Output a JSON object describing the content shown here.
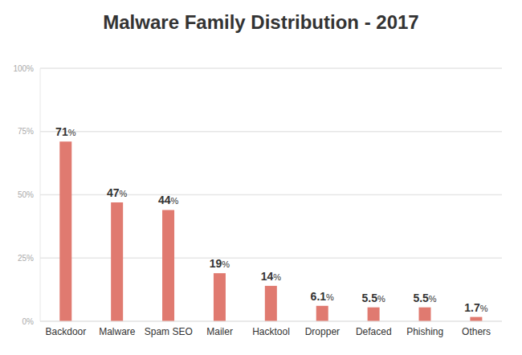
{
  "chart_data": {
    "type": "bar",
    "title": "Malware Family Distribution - 2017",
    "categories": [
      "Backdoor",
      "Malware",
      "Spam SEO",
      "Mailer",
      "Hacktool",
      "Dropper",
      "Defaced",
      "Phishing",
      "Others"
    ],
    "values": [
      71,
      47,
      44,
      19,
      14,
      6.1,
      5.5,
      5.5,
      1.7
    ],
    "value_labels": [
      "71%",
      "47%",
      "44%",
      "19%",
      "14%",
      "6.1%",
      "5.5%",
      "5.5%",
      "1.7%"
    ],
    "data_labels": true,
    "color": "#e07a70",
    "ylim": [
      0,
      100
    ],
    "yticks": [
      {
        "value": 0,
        "label": "0%"
      },
      {
        "value": 25,
        "label": "25%"
      },
      {
        "value": 50,
        "label": "50%"
      },
      {
        "value": 75,
        "label": "75%"
      },
      {
        "value": 100,
        "label": "100%"
      }
    ],
    "grid": true
  }
}
